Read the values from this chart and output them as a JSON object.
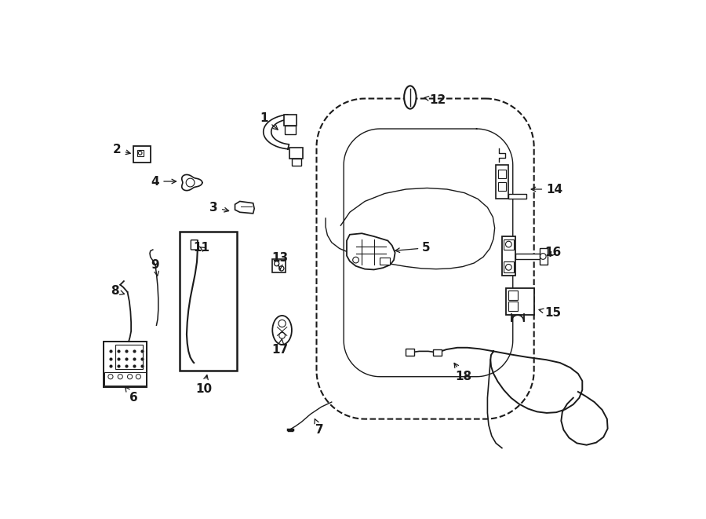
{
  "background_color": "#ffffff",
  "line_color": "#1a1a1a",
  "figsize": [
    9.0,
    6.61
  ],
  "dpi": 100
}
